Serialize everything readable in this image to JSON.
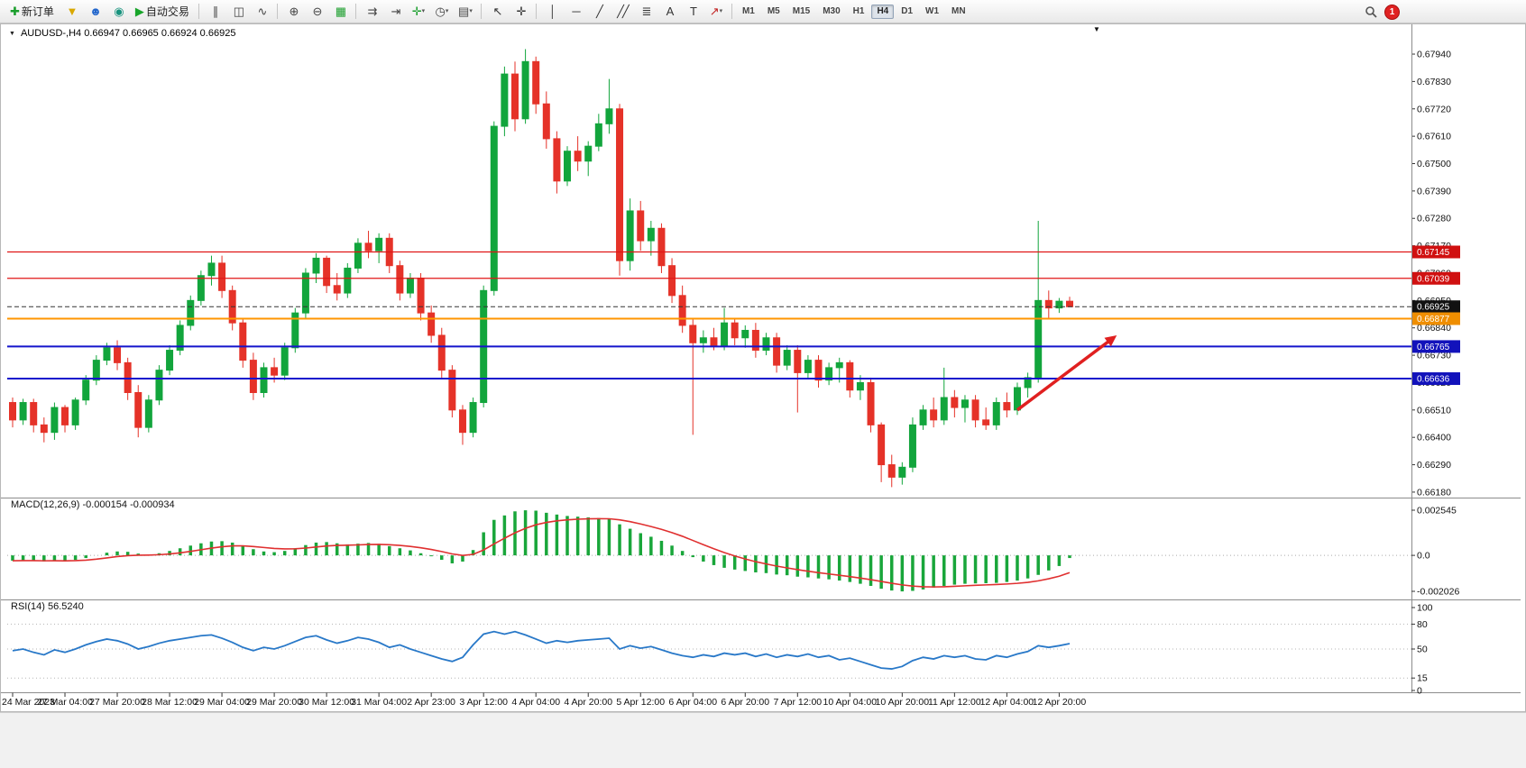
{
  "toolbar": {
    "items": [
      {
        "t": "btn",
        "name": "new-order-button",
        "glyph": "✚",
        "color": "#1a9e2c",
        "label": "新订单"
      },
      {
        "t": "icon",
        "name": "funnel-button",
        "glyph": "▼",
        "color": "#d9a800"
      },
      {
        "t": "icon",
        "name": "profile-button",
        "glyph": "☻",
        "color": "#2266cc"
      },
      {
        "t": "icon",
        "name": "globe-button",
        "glyph": "◉",
        "color": "#18937e"
      },
      {
        "t": "btn",
        "name": "auto-trading-button",
        "glyph": "▶",
        "color": "#18a52a",
        "label": "自动交易"
      },
      {
        "t": "sep"
      },
      {
        "t": "icon",
        "name": "bar-chart-button",
        "glyph": "∥",
        "color": "#444"
      },
      {
        "t": "icon",
        "name": "candlestick-chart-button",
        "glyph": "◫",
        "color": "#444"
      },
      {
        "t": "icon",
        "name": "line-chart-button",
        "glyph": "∿",
        "color": "#444"
      },
      {
        "t": "sep"
      },
      {
        "t": "icon",
        "name": "zoom-in-button",
        "glyph": "⊕",
        "color": "#444"
      },
      {
        "t": "icon",
        "name": "zoom-out-button",
        "glyph": "⊖",
        "color": "#444"
      },
      {
        "t": "icon",
        "name": "tile-windows-button",
        "glyph": "▦",
        "color": "#1a9e2c"
      },
      {
        "t": "sep"
      },
      {
        "t": "icon",
        "name": "auto-scroll-button",
        "glyph": "⇉",
        "color": "#444"
      },
      {
        "t": "icon",
        "name": "chart-shift-button",
        "glyph": "⇥",
        "color": "#444"
      },
      {
        "t": "icon",
        "name": "indicators-button",
        "glyph": "✛",
        "color": "#1a9e2c",
        "dropdown": true
      },
      {
        "t": "icon",
        "name": "periods-button",
        "glyph": "◷",
        "color": "#444",
        "dropdown": true
      },
      {
        "t": "icon",
        "name": "templates-button",
        "glyph": "▤",
        "color": "#444",
        "dropdown": true
      },
      {
        "t": "sep"
      },
      {
        "t": "icon",
        "name": "cursor-button",
        "glyph": "↖",
        "color": "#333"
      },
      {
        "t": "icon",
        "name": "crosshair-button",
        "glyph": "✛",
        "color": "#333"
      },
      {
        "t": "sep"
      },
      {
        "t": "icon",
        "name": "vertical-line-button",
        "glyph": "│",
        "color": "#333"
      },
      {
        "t": "icon",
        "name": "horizontal-line-button",
        "glyph": "─",
        "color": "#333"
      },
      {
        "t": "icon",
        "name": "trendline-button",
        "glyph": "╱",
        "color": "#333"
      },
      {
        "t": "icon",
        "name": "equidistant-channel-button",
        "glyph": "╱╱",
        "color": "#333"
      },
      {
        "t": "icon",
        "name": "fibonacci-button",
        "glyph": "≣",
        "color": "#333"
      },
      {
        "t": "icon",
        "name": "text-button",
        "glyph": "A",
        "color": "#333"
      },
      {
        "t": "icon",
        "name": "text-label-button",
        "glyph": "T",
        "color": "#333"
      },
      {
        "t": "icon",
        "name": "arrows-button",
        "glyph": "↗",
        "color": "#c22222",
        "dropdown": true
      },
      {
        "t": "sep"
      }
    ],
    "timeframes": [
      "M1",
      "M5",
      "M15",
      "M30",
      "H1",
      "H4",
      "D1",
      "W1",
      "MN"
    ],
    "active_timeframe": "H4",
    "notification_count": "1"
  },
  "chart_ui": {
    "menu_arrow": "▼",
    "collapse_arrow": "▼"
  },
  "chart_data": [
    {
      "type": "candlestick",
      "symbol": "AUDUSD-",
      "timeframe": "H4",
      "title": "AUDUSD-,H4  0.66947 0.66965 0.66924 0.66925",
      "ohlc": {
        "open": "0.66947",
        "high": "0.66965",
        "low": "0.66924",
        "close": "0.66925"
      },
      "up_color": "#12a53c",
      "down_color": "#e53228",
      "ylim": [
        0.66158,
        0.68056
      ],
      "y_ticks": [
        "0.67940",
        "0.67830",
        "0.67720",
        "0.67610",
        "0.67500",
        "0.67390",
        "0.67280",
        "0.67170",
        "0.67060",
        "0.66950",
        "0.66840",
        "0.66730",
        "0.66620",
        "0.66510",
        "0.66400",
        "0.66290",
        "0.66180"
      ],
      "x_labels": [
        "24 Mar 2023",
        "27 Mar 04:00",
        "27 Mar 20:00",
        "28 Mar 12:00",
        "29 Mar 04:00",
        "29 Mar 20:00",
        "30 Mar 12:00",
        "31 Mar 04:00",
        "2 Apr 23:00",
        "3 Apr 12:00",
        "4 Apr 04:00",
        "4 Apr 20:00",
        "5 Apr 12:00",
        "6 Apr 04:00",
        "6 Apr 20:00",
        "7 Apr 12:00",
        "10 Apr 04:00",
        "10 Apr 20:00",
        "11 Apr 12:00",
        "12 Apr 04:00",
        "12 Apr 20:00"
      ],
      "candles": [
        [
          0.6654,
          0.6656,
          0.6644,
          0.6647
        ],
        [
          0.6647,
          0.66555,
          0.6645,
          0.6654
        ],
        [
          0.6654,
          0.66555,
          0.6642,
          0.6645
        ],
        [
          0.6645,
          0.6648,
          0.6638,
          0.6642
        ],
        [
          0.6642,
          0.6654,
          0.6639,
          0.6652
        ],
        [
          0.6652,
          0.6653,
          0.6642,
          0.6645
        ],
        [
          0.6645,
          0.6656,
          0.6643,
          0.6655
        ],
        [
          0.6655,
          0.6665,
          0.6653,
          0.6663
        ],
        [
          0.6663,
          0.6673,
          0.6661,
          0.6671
        ],
        [
          0.6671,
          0.6678,
          0.6669,
          0.6676
        ],
        [
          0.6676,
          0.6679,
          0.6667,
          0.667
        ],
        [
          0.667,
          0.6672,
          0.6655,
          0.6658
        ],
        [
          0.6658,
          0.6661,
          0.664,
          0.6644
        ],
        [
          0.6644,
          0.6657,
          0.6642,
          0.6655
        ],
        [
          0.6655,
          0.6669,
          0.6653,
          0.6667
        ],
        [
          0.6667,
          0.6677,
          0.6665,
          0.6675
        ],
        [
          0.6675,
          0.6687,
          0.6673,
          0.6685
        ],
        [
          0.6685,
          0.6697,
          0.6683,
          0.6695
        ],
        [
          0.6695,
          0.6707,
          0.6693,
          0.6705
        ],
        [
          0.6705,
          0.6713,
          0.6701,
          0.671
        ],
        [
          0.671,
          0.6713,
          0.6696,
          0.6699
        ],
        [
          0.6699,
          0.6701,
          0.6683,
          0.6686
        ],
        [
          0.6686,
          0.6688,
          0.6668,
          0.6671
        ],
        [
          0.6671,
          0.6674,
          0.6655,
          0.6658
        ],
        [
          0.6658,
          0.667,
          0.6656,
          0.6668
        ],
        [
          0.6668,
          0.6672,
          0.6662,
          0.6665
        ],
        [
          0.6665,
          0.6678,
          0.6663,
          0.6676
        ],
        [
          0.6676,
          0.6692,
          0.6674,
          0.669
        ],
        [
          0.669,
          0.6708,
          0.6688,
          0.6706
        ],
        [
          0.6706,
          0.6714,
          0.6702,
          0.6712
        ],
        [
          0.6712,
          0.6713,
          0.6698,
          0.6701
        ],
        [
          0.6701,
          0.6706,
          0.6695,
          0.6698
        ],
        [
          0.6698,
          0.671,
          0.6696,
          0.6708
        ],
        [
          0.6708,
          0.672,
          0.6706,
          0.6718
        ],
        [
          0.6718,
          0.6723,
          0.6712,
          0.6715
        ],
        [
          0.6715,
          0.6722,
          0.671,
          0.672
        ],
        [
          0.672,
          0.6722,
          0.6706,
          0.6709
        ],
        [
          0.6709,
          0.6711,
          0.6695,
          0.6698
        ],
        [
          0.6698,
          0.6706,
          0.6696,
          0.6704
        ],
        [
          0.6704,
          0.6706,
          0.6687,
          0.669
        ],
        [
          0.669,
          0.6693,
          0.6678,
          0.6681
        ],
        [
          0.6681,
          0.6684,
          0.6664,
          0.6667
        ],
        [
          0.6667,
          0.6669,
          0.6648,
          0.6651
        ],
        [
          0.6651,
          0.6653,
          0.6637,
          0.6642
        ],
        [
          0.6642,
          0.6656,
          0.664,
          0.6654
        ],
        [
          0.6654,
          0.6701,
          0.6652,
          0.6699
        ],
        [
          0.6699,
          0.6767,
          0.6697,
          0.6765
        ],
        [
          0.6765,
          0.6789,
          0.6761,
          0.6786
        ],
        [
          0.6786,
          0.6791,
          0.6763,
          0.6768
        ],
        [
          0.6768,
          0.6796,
          0.6766,
          0.6791
        ],
        [
          0.6791,
          0.6793,
          0.677,
          0.6774
        ],
        [
          0.6774,
          0.6779,
          0.6756,
          0.676
        ],
        [
          0.676,
          0.6763,
          0.6738,
          0.6743
        ],
        [
          0.6743,
          0.6757,
          0.6741,
          0.6755
        ],
        [
          0.6755,
          0.6761,
          0.6747,
          0.6751
        ],
        [
          0.6751,
          0.6759,
          0.6745,
          0.6757
        ],
        [
          0.6757,
          0.677,
          0.6755,
          0.6766
        ],
        [
          0.6766,
          0.6784,
          0.6762,
          0.6772
        ],
        [
          0.6772,
          0.6774,
          0.6705,
          0.6711
        ],
        [
          0.6711,
          0.6736,
          0.6707,
          0.6731
        ],
        [
          0.6731,
          0.6735,
          0.6715,
          0.6719
        ],
        [
          0.6719,
          0.6727,
          0.6713,
          0.6724
        ],
        [
          0.6724,
          0.6726,
          0.6706,
          0.6709
        ],
        [
          0.6709,
          0.6712,
          0.6694,
          0.6697
        ],
        [
          0.6697,
          0.6701,
          0.6682,
          0.6685
        ],
        [
          0.6685,
          0.6688,
          0.6641,
          0.6678
        ],
        [
          0.6678,
          0.6683,
          0.6674,
          0.668
        ],
        [
          0.668,
          0.6684,
          0.6675,
          0.6677
        ],
        [
          0.6677,
          0.6692,
          0.6675,
          0.6686
        ],
        [
          0.6686,
          0.6688,
          0.6677,
          0.668
        ],
        [
          0.668,
          0.6685,
          0.6676,
          0.6683
        ],
        [
          0.6683,
          0.6686,
          0.6672,
          0.6675
        ],
        [
          0.6675,
          0.6682,
          0.6673,
          0.668
        ],
        [
          0.668,
          0.6682,
          0.6666,
          0.6669
        ],
        [
          0.6669,
          0.6677,
          0.6667,
          0.6675
        ],
        [
          0.6675,
          0.6677,
          0.665,
          0.6666
        ],
        [
          0.6666,
          0.6673,
          0.6664,
          0.6671
        ],
        [
          0.6671,
          0.6673,
          0.666,
          0.6663
        ],
        [
          0.6663,
          0.667,
          0.6661,
          0.6668
        ],
        [
          0.6668,
          0.6672,
          0.6662,
          0.667
        ],
        [
          0.667,
          0.6671,
          0.6656,
          0.6659
        ],
        [
          0.6659,
          0.6665,
          0.6655,
          0.6662
        ],
        [
          0.6662,
          0.6664,
          0.6642,
          0.6645
        ],
        [
          0.6645,
          0.6646,
          0.6622,
          0.6629
        ],
        [
          0.6629,
          0.6633,
          0.662,
          0.6624
        ],
        [
          0.6624,
          0.663,
          0.6621,
          0.6628
        ],
        [
          0.6628,
          0.6648,
          0.6626,
          0.6645
        ],
        [
          0.6645,
          0.6653,
          0.6643,
          0.6651
        ],
        [
          0.6651,
          0.6656,
          0.6644,
          0.6647
        ],
        [
          0.6647,
          0.6668,
          0.6645,
          0.6656
        ],
        [
          0.6656,
          0.6659,
          0.6648,
          0.6652
        ],
        [
          0.6652,
          0.6657,
          0.6646,
          0.6655
        ],
        [
          0.6655,
          0.6657,
          0.6644,
          0.6647
        ],
        [
          0.6647,
          0.6652,
          0.6643,
          0.6645
        ],
        [
          0.6645,
          0.6656,
          0.6643,
          0.6654
        ],
        [
          0.6654,
          0.6658,
          0.6648,
          0.6651
        ],
        [
          0.6651,
          0.6662,
          0.6649,
          0.666
        ],
        [
          0.666,
          0.6666,
          0.6656,
          0.6664
        ],
        [
          0.6664,
          0.6727,
          0.6662,
          0.6695
        ],
        [
          0.6695,
          0.6699,
          0.6688,
          0.6692
        ],
        [
          0.6692,
          0.6696,
          0.669,
          0.66947
        ],
        [
          0.66947,
          0.66965,
          0.66924,
          0.66925
        ]
      ],
      "levels": [
        {
          "price": 0.67145,
          "label": "0.67145",
          "color": "#e01616",
          "tag": "#d01010",
          "style": "solid",
          "width": 1.2
        },
        {
          "price": 0.67039,
          "label": "0.67039",
          "color": "#e01616",
          "tag": "#d01010",
          "style": "solid",
          "width": 1.2
        },
        {
          "price": 0.66925,
          "label": "0.66925",
          "color": "#333333",
          "tag": "#111111",
          "style": "dash",
          "width": 1,
          "role": "current"
        },
        {
          "price": 0.66877,
          "label": "0.66877",
          "color": "#ff9500",
          "tag": "#ef8e00",
          "style": "solid",
          "width": 2
        },
        {
          "price": 0.66765,
          "label": "0.66765",
          "color": "#1414cc",
          "tag": "#1212bb",
          "style": "solid",
          "width": 2
        },
        {
          "price": 0.66636,
          "label": "0.66636",
          "color": "#1414cc",
          "tag": "#1212bb",
          "style": "solid",
          "width": 2
        }
      ],
      "annotation_arrow": {
        "from_index": 96,
        "from_price": 0.6651,
        "to_index": 105.5,
        "to_price": 0.6681,
        "color": "#e02020"
      }
    },
    {
      "type": "bar",
      "name": "MACD",
      "label": "MACD(12,26,9) -0.000154 -0.000934",
      "main_value": "-0.000154",
      "signal_value": "-0.000934",
      "histogram_color": "#19a63a",
      "signal_color": "#e03030",
      "ylim": [
        -0.002026,
        0.002545
      ],
      "y_ticks": [
        "0.002545",
        "0.0",
        "-0.002026"
      ],
      "values": [
        -0.0003,
        -0.00028,
        -0.0003,
        -0.00034,
        -0.0003,
        -0.00032,
        -0.00026,
        -0.00015,
        0.0,
        0.00015,
        0.00022,
        0.0002,
        0.0001,
        5e-05,
        0.00012,
        0.00025,
        0.0004,
        0.00055,
        0.00068,
        0.00078,
        0.0008,
        0.00072,
        0.00055,
        0.00035,
        0.00022,
        0.00018,
        0.00025,
        0.0004,
        0.00058,
        0.00072,
        0.00075,
        0.00068,
        0.00062,
        0.00066,
        0.0007,
        0.00065,
        0.00052,
        0.0004,
        0.00028,
        0.00012,
        -5e-05,
        -0.00025,
        -0.00045,
        -0.00035,
        0.0003,
        0.0013,
        0.002,
        0.00225,
        0.00248,
        0.00254,
        0.00252,
        0.0024,
        0.0023,
        0.00222,
        0.00218,
        0.00214,
        0.0021,
        0.00205,
        0.00175,
        0.0015,
        0.00125,
        0.00105,
        0.00082,
        0.00055,
        0.00025,
        -0.0001,
        -0.00035,
        -0.00055,
        -0.0007,
        -0.0008,
        -0.00088,
        -0.00096,
        -0.001,
        -0.00108,
        -0.00112,
        -0.0012,
        -0.00124,
        -0.0013,
        -0.00135,
        -0.00142,
        -0.0015,
        -0.0016,
        -0.00172,
        -0.00188,
        -0.00198,
        -0.00203,
        -0.002,
        -0.00192,
        -0.00182,
        -0.00172,
        -0.00165,
        -0.0016,
        -0.00158,
        -0.00157,
        -0.00155,
        -0.0015,
        -0.00142,
        -0.0013,
        -0.0011,
        -0.00085,
        -0.0006,
        -0.00015
      ]
    },
    {
      "type": "line",
      "name": "RSI",
      "label": "RSI(14) 56.5240",
      "current_value": "56.5240",
      "line_color": "#2878c8",
      "ylim": [
        0,
        100
      ],
      "levels": [
        80,
        50,
        15
      ],
      "y_ticks": [
        "100",
        "80",
        "50",
        "15",
        "0"
      ],
      "values": [
        48,
        50,
        46,
        43,
        49,
        46,
        50,
        55,
        59,
        62,
        60,
        56,
        50,
        53,
        57,
        60,
        62,
        64,
        66,
        67,
        63,
        58,
        52,
        48,
        52,
        50,
        54,
        59,
        64,
        66,
        61,
        57,
        60,
        64,
        62,
        58,
        52,
        55,
        50,
        46,
        42,
        38,
        35,
        40,
        55,
        68,
        71,
        68,
        71,
        67,
        62,
        57,
        60,
        58,
        60,
        61,
        62,
        63,
        50,
        54,
        51,
        53,
        49,
        45,
        42,
        40,
        43,
        41,
        45,
        43,
        45,
        41,
        44,
        40,
        43,
        41,
        44,
        40,
        42,
        37,
        39,
        35,
        31,
        27,
        26,
        29,
        36,
        40,
        38,
        42,
        40,
        42,
        38,
        37,
        42,
        40,
        44,
        47,
        54,
        52,
        54,
        56.52
      ]
    }
  ]
}
